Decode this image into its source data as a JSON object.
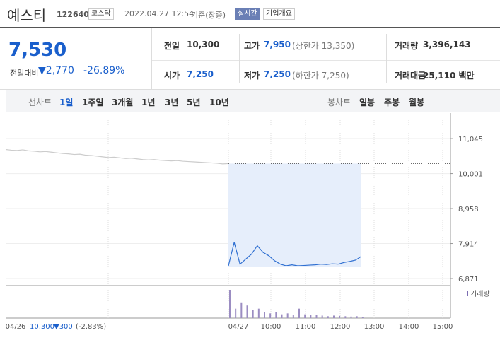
{
  "header": {
    "name": "예스티",
    "code": "122640",
    "market": "코스닥",
    "datetime": "2022.04.27 12:54",
    "basis": "기준(장중)",
    "realtime": "실시간",
    "company": "기업개요"
  },
  "price": {
    "current": "7,530",
    "change_label": "전일대비",
    "change": "2,770",
    "rate": "-26.89%"
  },
  "stats": [
    [
      {
        "label": "전일",
        "value": "10,300"
      },
      {
        "label": "고가",
        "value": "7,950",
        "note": "(상한가 13,350)"
      },
      {
        "label": "거래량",
        "value": "3,396,143"
      }
    ],
    [
      {
        "label": "시가",
        "value": "7,250"
      },
      {
        "label": "저가",
        "value": "7,250",
        "note": "(하한가 7,250)"
      },
      {
        "label": "거래대금",
        "value": "25,110 백만"
      }
    ]
  ],
  "tabs": {
    "line_label": "선차트",
    "periods": [
      "1일",
      "1주일",
      "3개월",
      "1년",
      "3년",
      "5년",
      "10년"
    ],
    "candle_label": "봉차트",
    "candles": [
      "일봉",
      "주봉",
      "월봉"
    ]
  },
  "chart_data": {
    "type": "line",
    "ylim": [
      6660,
      11700
    ],
    "yticks": [
      {
        "value": 11045,
        "label": "11,045"
      },
      {
        "value": 10001,
        "label": "10,001"
      },
      {
        "value": 8958,
        "label": "8,958"
      },
      {
        "value": 7914,
        "label": "7,914"
      },
      {
        "value": 6871,
        "label": "6,871"
      }
    ],
    "xticks": [
      "04/26",
      "04/27",
      "10:00",
      "11:00",
      "12:00",
      "13:00",
      "14:00",
      "15:00"
    ],
    "prev_close": 10300,
    "series": [
      {
        "color": "#cccccc",
        "values": [
          10720,
          10700,
          10690,
          10710,
          10680,
          10670,
          10650,
          10660,
          10640,
          10620,
          10600,
          10590,
          10570,
          10580,
          10550,
          10540,
          10520,
          10500,
          10480,
          10490,
          10470,
          10450,
          10460,
          10440,
          10420,
          10410,
          10420,
          10400,
          10390,
          10380,
          10390,
          10370,
          10360,
          10350,
          10340,
          10330,
          10320,
          10310,
          10290,
          10300
        ]
      },
      {
        "color": "#2f6fd1",
        "values": [
          7250,
          7950,
          7300,
          7450,
          7600,
          7850,
          7650,
          7550,
          7400,
          7300,
          7250,
          7280,
          7250,
          7260,
          7270,
          7280,
          7300,
          7290,
          7310,
          7300,
          7350,
          7380,
          7420,
          7530
        ]
      }
    ],
    "volume_label": "거래량",
    "volume": [
      900,
      300,
      500,
      400,
      250,
      300,
      200,
      150,
      200,
      120,
      150,
      100,
      300,
      120,
      100,
      90,
      80,
      60,
      80,
      70,
      60,
      50,
      60,
      40
    ],
    "prev_info": {
      "value": "10,300",
      "change": "▼300",
      "rate": "(-2.83%)"
    }
  }
}
